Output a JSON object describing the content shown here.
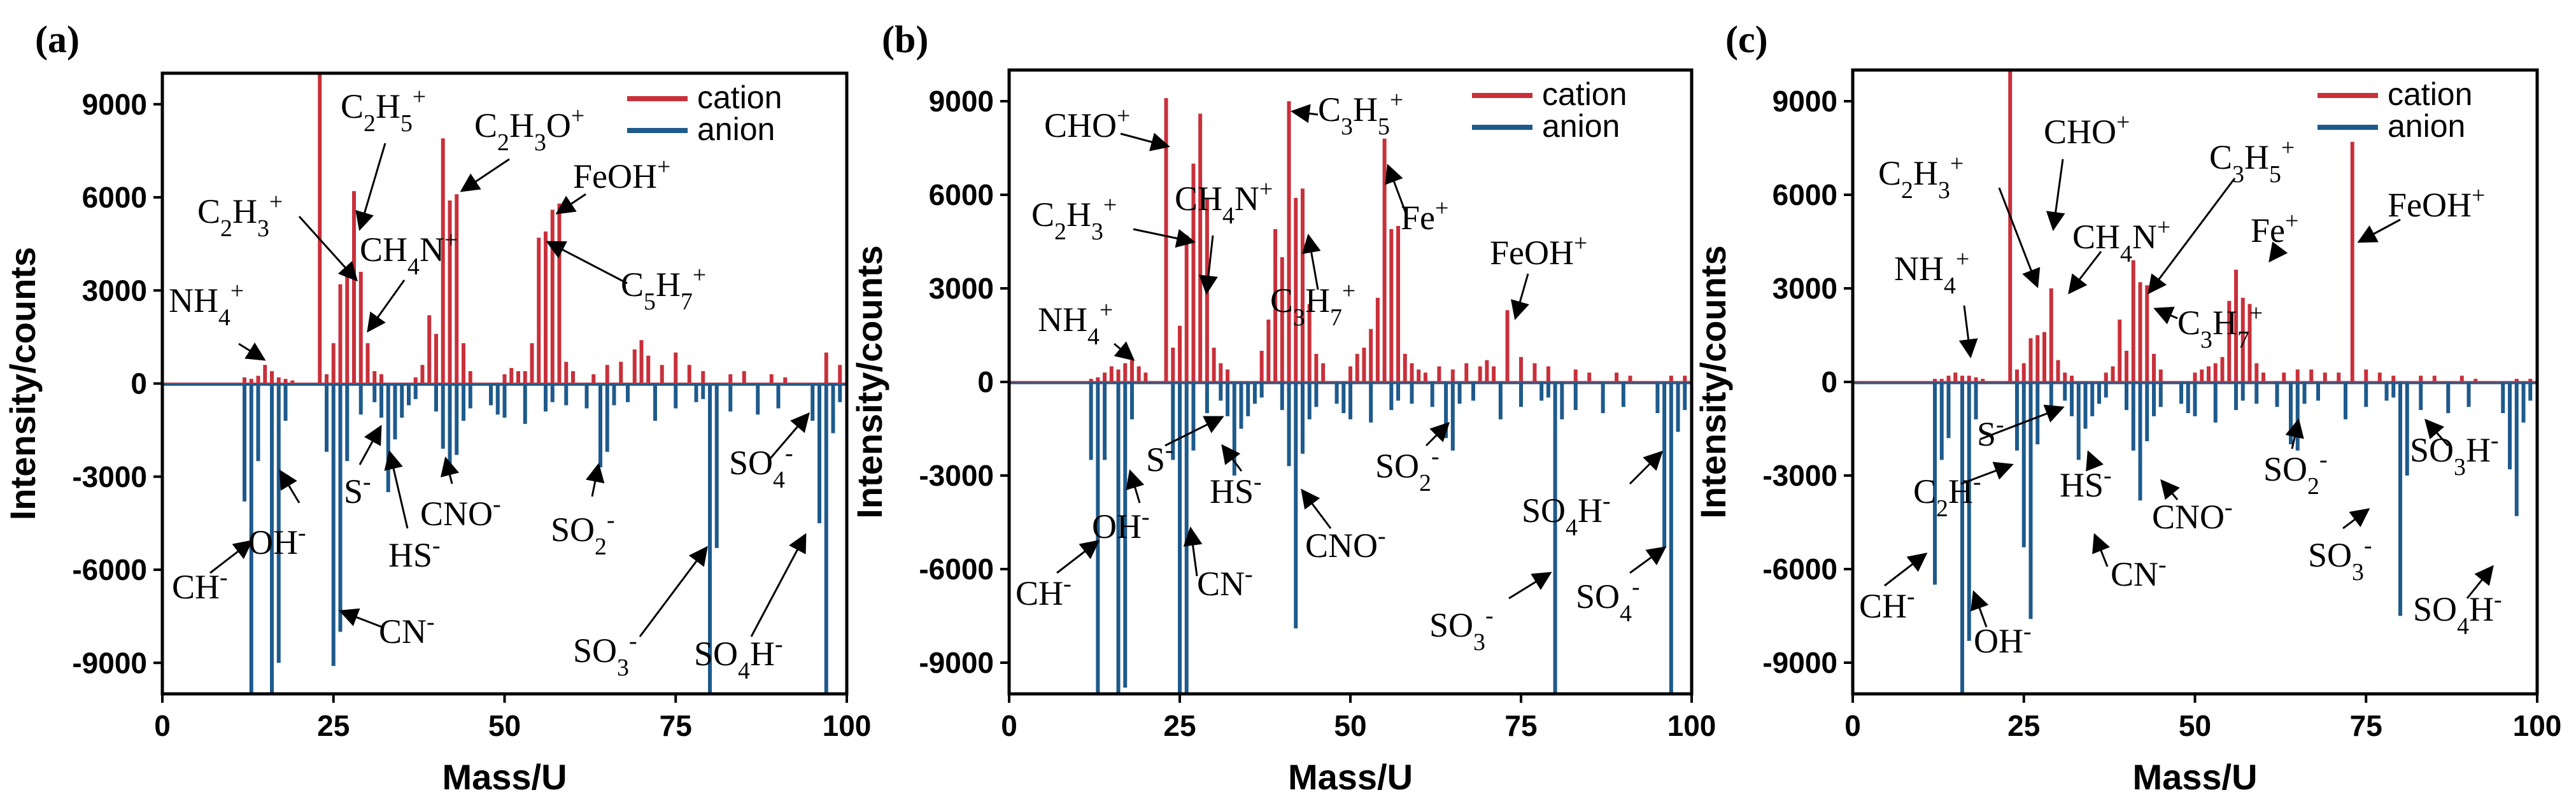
{
  "colors": {
    "cation": "#c8303a",
    "anion": "#1e5a8c",
    "axis": "#000000"
  },
  "chart_data": [
    {
      "type": "bar",
      "panel_label": "(a)",
      "xlabel": "Mass/U",
      "ylabel": "Intensity/counts",
      "xlim": [
        0,
        100
      ],
      "ylim": [
        -10000,
        10000
      ],
      "xticks": [
        0,
        25,
        50,
        75,
        100
      ],
      "yticks": [
        -9000,
        -6000,
        -3000,
        0,
        3000,
        6000,
        9000
      ],
      "legend": [
        "cation",
        "anion"
      ],
      "legend_position": "top-right",
      "cation": {
        "x": [
          12,
          13,
          14,
          15,
          16,
          17,
          18,
          19,
          23,
          24,
          25,
          26,
          27,
          28,
          29,
          30,
          31,
          32,
          37,
          38,
          39,
          40,
          41,
          42,
          43,
          44,
          45,
          50,
          51,
          52,
          53,
          54,
          55,
          56,
          57,
          58,
          59,
          60,
          63,
          65,
          67,
          69,
          70,
          71,
          73,
          75,
          77,
          79,
          83,
          85,
          89,
          91,
          97,
          99
        ],
        "y": [
          200,
          150,
          250,
          600,
          400,
          200,
          150,
          100,
          10000,
          300,
          1300,
          3200,
          3500,
          6200,
          3600,
          1300,
          400,
          300,
          200,
          600,
          2200,
          1600,
          7900,
          5900,
          6100,
          1300,
          400,
          300,
          500,
          400,
          400,
          1300,
          4700,
          4900,
          5600,
          5800,
          700,
          400,
          300,
          600,
          700,
          1100,
          1400,
          900,
          600,
          1000,
          600,
          400,
          300,
          400,
          300,
          200,
          1000,
          600
        ]
      },
      "anion": {
        "x": [
          12,
          13,
          14,
          16,
          17,
          18,
          24,
          25,
          26,
          27,
          29,
          31,
          32,
          33,
          34,
          35,
          36,
          37,
          40,
          41,
          42,
          43,
          44,
          45,
          48,
          49,
          50,
          53,
          56,
          57,
          59,
          62,
          64,
          65,
          66,
          68,
          72,
          75,
          78,
          79,
          80,
          81,
          83,
          87,
          90,
          95,
          96,
          97,
          98,
          99
        ],
        "y": [
          -3800,
          -10000,
          -2500,
          -10000,
          -9000,
          -1200,
          -2200,
          -9100,
          -8000,
          -2500,
          -1000,
          -600,
          -1100,
          -3500,
          -1800,
          -1100,
          -700,
          -500,
          -900,
          -2100,
          -2900,
          -2300,
          -1200,
          -800,
          -700,
          -1000,
          -1100,
          -1300,
          -900,
          -600,
          -700,
          -800,
          -2700,
          -2200,
          -700,
          -600,
          -1200,
          -800,
          -600,
          -500,
          -10000,
          -5300,
          -900,
          -1000,
          -800,
          -1200,
          -4500,
          -10000,
          -1600,
          -600
        ]
      },
      "annotations": [
        {
          "html": "NH<tspan baseline-shift='sub' font-size='70%'>4</tspan><tspan baseline-shift='super' font-size='70%'>+</tspan>"
        },
        {
          "html": "C<tspan baseline-shift='sub' font-size='70%'>2</tspan>H<tspan baseline-shift='sub' font-size='70%'>3</tspan><tspan baseline-shift='super' font-size='70%'>+</tspan>"
        },
        {
          "html": "C<tspan baseline-shift='sub' font-size='70%'>2</tspan>H<tspan baseline-shift='sub' font-size='70%'>5</tspan><tspan baseline-shift='super' font-size='70%'>+</tspan>"
        },
        {
          "html": "CH<tspan baseline-shift='sub' font-size='70%'>4</tspan>N<tspan baseline-shift='super' font-size='70%'>+</tspan>"
        },
        {
          "html": "C<tspan baseline-shift='sub' font-size='70%'>2</tspan>H<tspan baseline-shift='sub' font-size='70%'>3</tspan>O<tspan baseline-shift='super' font-size='70%'>+</tspan>"
        },
        {
          "html": "FeOH<tspan baseline-shift='super' font-size='70%'>+</tspan>"
        },
        {
          "html": "C<tspan baseline-shift='sub' font-size='70%'>5</tspan>H<tspan baseline-shift='sub' font-size='70%'>7</tspan><tspan baseline-shift='super' font-size='70%'>+</tspan>"
        },
        {
          "html": "CH<tspan baseline-shift='super' font-size='70%'>-</tspan>"
        },
        {
          "html": "OH<tspan baseline-shift='super' font-size='70%'>-</tspan>"
        },
        {
          "html": "CN<tspan baseline-shift='super' font-size='70%'>-</tspan>"
        },
        {
          "html": "S<tspan baseline-shift='super' font-size='70%'>-</tspan>"
        },
        {
          "html": "HS<tspan baseline-shift='super' font-size='70%'>-</tspan>"
        },
        {
          "html": "CNO<tspan baseline-shift='super' font-size='70%'>-</tspan>"
        },
        {
          "html": "SO<tspan baseline-shift='sub' font-size='70%'>2</tspan><tspan baseline-shift='super' font-size='70%'>-</tspan>"
        },
        {
          "html": "SO<tspan baseline-shift='sub' font-size='70%'>3</tspan><tspan baseline-shift='super' font-size='70%'>-</tspan>"
        },
        {
          "html": "SO<tspan baseline-shift='sub' font-size='70%'>4</tspan>H<tspan baseline-shift='super' font-size='70%'>-</tspan>"
        },
        {
          "html": "SO<tspan baseline-shift='sub' font-size='70%'>4</tspan><tspan baseline-shift='super' font-size='70%'>-</tspan>"
        }
      ]
    },
    {
      "type": "bar",
      "panel_label": "(b)",
      "xlabel": "Mass/U",
      "ylabel": "Intensity/counts",
      "xlim": [
        0,
        100
      ],
      "ylim": [
        -10000,
        10000
      ],
      "xticks": [
        0,
        25,
        50,
        75,
        100
      ],
      "yticks": [
        -9000,
        -6000,
        -3000,
        0,
        3000,
        6000,
        9000
      ],
      "legend": [
        "cation",
        "anion"
      ],
      "legend_position": "top-right",
      "cation": {
        "x": [
          12,
          13,
          14,
          15,
          16,
          17,
          18,
          19,
          20,
          23,
          24,
          25,
          26,
          27,
          28,
          29,
          30,
          31,
          32,
          37,
          38,
          39,
          40,
          41,
          42,
          43,
          44,
          45,
          46,
          50,
          51,
          52,
          53,
          54,
          55,
          56,
          57,
          58,
          59,
          60,
          61,
          63,
          65,
          67,
          69,
          70,
          71,
          73,
          75,
          77,
          79,
          83,
          85,
          89,
          91,
          97,
          99
        ],
        "y": [
          100,
          150,
          300,
          500,
          400,
          600,
          700,
          500,
          300,
          9100,
          1100,
          1800,
          4700,
          7000,
          8600,
          5900,
          1100,
          600,
          400,
          1000,
          2000,
          4900,
          4000,
          9000,
          5900,
          6200,
          2500,
          900,
          600,
          500,
          900,
          1100,
          1700,
          2700,
          7800,
          4900,
          5000,
          900,
          600,
          400,
          300,
          500,
          400,
          600,
          500,
          700,
          500,
          2300,
          800,
          600,
          500,
          400,
          300,
          300,
          200,
          200,
          200
        ]
      },
      "anion": {
        "x": [
          12,
          13,
          14,
          16,
          17,
          18,
          24,
          25,
          26,
          27,
          29,
          31,
          32,
          33,
          34,
          35,
          36,
          37,
          40,
          41,
          42,
          43,
          44,
          45,
          48,
          49,
          50,
          53,
          56,
          57,
          59,
          62,
          64,
          65,
          66,
          68,
          72,
          75,
          78,
          79,
          80,
          81,
          83,
          87,
          90,
          95,
          96,
          97,
          98,
          99
        ],
        "y": [
          -2500,
          -10000,
          -2500,
          -10000,
          -9800,
          -1200,
          -2500,
          -10000,
          -10000,
          -2200,
          -1000,
          -600,
          -1100,
          -3000,
          -1500,
          -1100,
          -700,
          -500,
          -900,
          -2700,
          -7900,
          -2300,
          -1200,
          -800,
          -700,
          -1000,
          -1200,
          -1300,
          -900,
          -600,
          -700,
          -800,
          -1800,
          -2200,
          -700,
          -600,
          -1200,
          -800,
          -600,
          -500,
          -10000,
          -1200,
          -900,
          -1000,
          -800,
          -1000,
          -5300,
          -10000,
          -1600,
          -900
        ]
      },
      "annotations": [
        {
          "html": "NH<tspan baseline-shift='sub' font-size='70%'>4</tspan><tspan baseline-shift='super' font-size='70%'>+</tspan>"
        },
        {
          "html": "CHO<tspan baseline-shift='super' font-size='70%'>+</tspan>"
        },
        {
          "html": "C<tspan baseline-shift='sub' font-size='70%'>2</tspan>H<tspan baseline-shift='sub' font-size='70%'>3</tspan><tspan baseline-shift='super' font-size='70%'>+</tspan>"
        },
        {
          "html": "CH<tspan baseline-shift='sub' font-size='70%'>4</tspan>N<tspan baseline-shift='super' font-size='70%'>+</tspan>"
        },
        {
          "html": "C<tspan baseline-shift='sub' font-size='70%'>3</tspan>H<tspan baseline-shift='sub' font-size='70%'>5</tspan><tspan baseline-shift='super' font-size='70%'>+</tspan>"
        },
        {
          "html": "Fe<tspan baseline-shift='super' font-size='70%'>+</tspan>"
        },
        {
          "html": "C<tspan baseline-shift='sub' font-size='70%'>3</tspan>H<tspan baseline-shift='sub' font-size='70%'>7</tspan><tspan baseline-shift='super' font-size='70%'>+</tspan>"
        },
        {
          "html": "FeOH<tspan baseline-shift='super' font-size='70%'>+</tspan>"
        },
        {
          "html": "CH<tspan baseline-shift='super' font-size='70%'>-</tspan>"
        },
        {
          "html": "OH<tspan baseline-shift='super' font-size='70%'>-</tspan>"
        },
        {
          "html": "CN<tspan baseline-shift='super' font-size='70%'>-</tspan>"
        },
        {
          "html": "S<tspan baseline-shift='super' font-size='70%'>-</tspan>"
        },
        {
          "html": "HS<tspan baseline-shift='super' font-size='70%'>-</tspan>"
        },
        {
          "html": "CNO<tspan baseline-shift='super' font-size='70%'>-</tspan>"
        },
        {
          "html": "SO<tspan baseline-shift='sub' font-size='70%'>2</tspan><tspan baseline-shift='super' font-size='70%'>-</tspan>"
        },
        {
          "html": "SO<tspan baseline-shift='sub' font-size='70%'>3</tspan><tspan baseline-shift='super' font-size='70%'>-</tspan>"
        },
        {
          "html": "SO<tspan baseline-shift='sub' font-size='70%'>4</tspan>H<tspan baseline-shift='super' font-size='70%'>-</tspan>"
        },
        {
          "html": "SO<tspan baseline-shift='sub' font-size='70%'>4</tspan><tspan baseline-shift='super' font-size='70%'>-</tspan>"
        }
      ]
    },
    {
      "type": "bar",
      "panel_label": "(c)",
      "xlabel": "Mass/U",
      "ylabel": "Intensity/counts",
      "xlim": [
        0,
        100
      ],
      "ylim": [
        -10000,
        10000
      ],
      "xticks": [
        0,
        25,
        50,
        75,
        100
      ],
      "yticks": [
        -9000,
        -6000,
        -3000,
        0,
        3000,
        6000,
        9000
      ],
      "legend": [
        "cation",
        "anion"
      ],
      "legend_position": "top-right",
      "cation": {
        "x": [
          12,
          13,
          14,
          15,
          16,
          17,
          18,
          19,
          23,
          24,
          25,
          26,
          27,
          28,
          29,
          30,
          31,
          32,
          37,
          38,
          39,
          40,
          41,
          42,
          43,
          44,
          45,
          50,
          51,
          52,
          53,
          54,
          55,
          56,
          57,
          58,
          59,
          60,
          63,
          65,
          67,
          69,
          71,
          73,
          75,
          77,
          79,
          83,
          85,
          89,
          91,
          97,
          99
        ],
        "y": [
          100,
          100,
          200,
          300,
          200,
          200,
          150,
          100,
          10000,
          400,
          600,
          1400,
          1500,
          1600,
          3000,
          700,
          300,
          200,
          300,
          500,
          2000,
          1000,
          3900,
          3200,
          3100,
          900,
          400,
          300,
          400,
          500,
          600,
          800,
          2600,
          3600,
          2700,
          2500,
          600,
          300,
          300,
          400,
          400,
          300,
          300,
          7700,
          400,
          300,
          200,
          200,
          200,
          200,
          100,
          100,
          100
        ]
      },
      "anion": {
        "x": [
          12,
          13,
          14,
          16,
          17,
          18,
          24,
          25,
          26,
          27,
          29,
          31,
          32,
          33,
          34,
          35,
          36,
          37,
          40,
          41,
          42,
          43,
          44,
          45,
          48,
          49,
          50,
          53,
          56,
          57,
          59,
          62,
          64,
          65,
          66,
          68,
          72,
          75,
          78,
          79,
          80,
          81,
          83,
          87,
          90,
          95,
          96,
          97,
          98,
          99
        ],
        "y": [
          -6500,
          -2500,
          -1800,
          -10000,
          -8300,
          -1200,
          -2200,
          -5300,
          -7600,
          -2000,
          -1000,
          -600,
          -1100,
          -2500,
          -1500,
          -1100,
          -700,
          -500,
          -900,
          -2200,
          -3800,
          -1900,
          -1100,
          -800,
          -700,
          -1000,
          -1100,
          -1300,
          -900,
          -600,
          -700,
          -800,
          -2000,
          -2200,
          -700,
          -600,
          -1200,
          -800,
          -600,
          -500,
          -7500,
          -3000,
          -900,
          -1000,
          -800,
          -1000,
          -2800,
          -4300,
          -1300,
          -600
        ]
      },
      "annotations": [
        {
          "html": "NH<tspan baseline-shift='sub' font-size='70%'>4</tspan><tspan baseline-shift='super' font-size='70%'>+</tspan>"
        },
        {
          "html": "C<tspan baseline-shift='sub' font-size='70%'>2</tspan>H<tspan baseline-shift='sub' font-size='70%'>3</tspan><tspan baseline-shift='super' font-size='70%'>+</tspan>"
        },
        {
          "html": "CHO<tspan baseline-shift='super' font-size='70%'>+</tspan>"
        },
        {
          "html": "CH<tspan baseline-shift='sub' font-size='70%'>4</tspan>N<tspan baseline-shift='super' font-size='70%'>+</tspan>"
        },
        {
          "html": "C<tspan baseline-shift='sub' font-size='70%'>3</tspan>H<tspan baseline-shift='sub' font-size='70%'>5</tspan><tspan baseline-shift='super' font-size='70%'>+</tspan>"
        },
        {
          "html": "Fe<tspan baseline-shift='super' font-size='70%'>+</tspan>"
        },
        {
          "html": "C<tspan baseline-shift='sub' font-size='70%'>3</tspan>H<tspan baseline-shift='sub' font-size='70%'>7</tspan><tspan baseline-shift='super' font-size='70%'>+</tspan>"
        },
        {
          "html": "FeOH<tspan baseline-shift='super' font-size='70%'>+</tspan>"
        },
        {
          "html": "CH<tspan baseline-shift='super' font-size='70%'>-</tspan>"
        },
        {
          "html": "C<tspan baseline-shift='sub' font-size='70%'>2</tspan>H<tspan baseline-shift='super' font-size='70%'>-</tspan>"
        },
        {
          "html": "OH<tspan baseline-shift='super' font-size='70%'>-</tspan>"
        },
        {
          "html": "S<tspan baseline-shift='super' font-size='70%'>-</tspan>"
        },
        {
          "html": "HS<tspan baseline-shift='super' font-size='70%'>-</tspan>"
        },
        {
          "html": "CN<tspan baseline-shift='super' font-size='70%'>-</tspan>"
        },
        {
          "html": "CNO<tspan baseline-shift='super' font-size='70%'>-</tspan>"
        },
        {
          "html": "SO<tspan baseline-shift='sub' font-size='70%'>2</tspan><tspan baseline-shift='super' font-size='70%'>-</tspan>"
        },
        {
          "html": "SO<tspan baseline-shift='sub' font-size='70%'>3</tspan><tspan baseline-shift='super' font-size='70%'>-</tspan>"
        },
        {
          "html": "SO<tspan baseline-shift='sub' font-size='70%'>3</tspan>H<tspan baseline-shift='super' font-size='70%'>-</tspan>"
        },
        {
          "html": "SO<tspan baseline-shift='sub' font-size='70%'>4</tspan>H<tspan baseline-shift='super' font-size='70%'>-</tspan>"
        }
      ]
    }
  ]
}
